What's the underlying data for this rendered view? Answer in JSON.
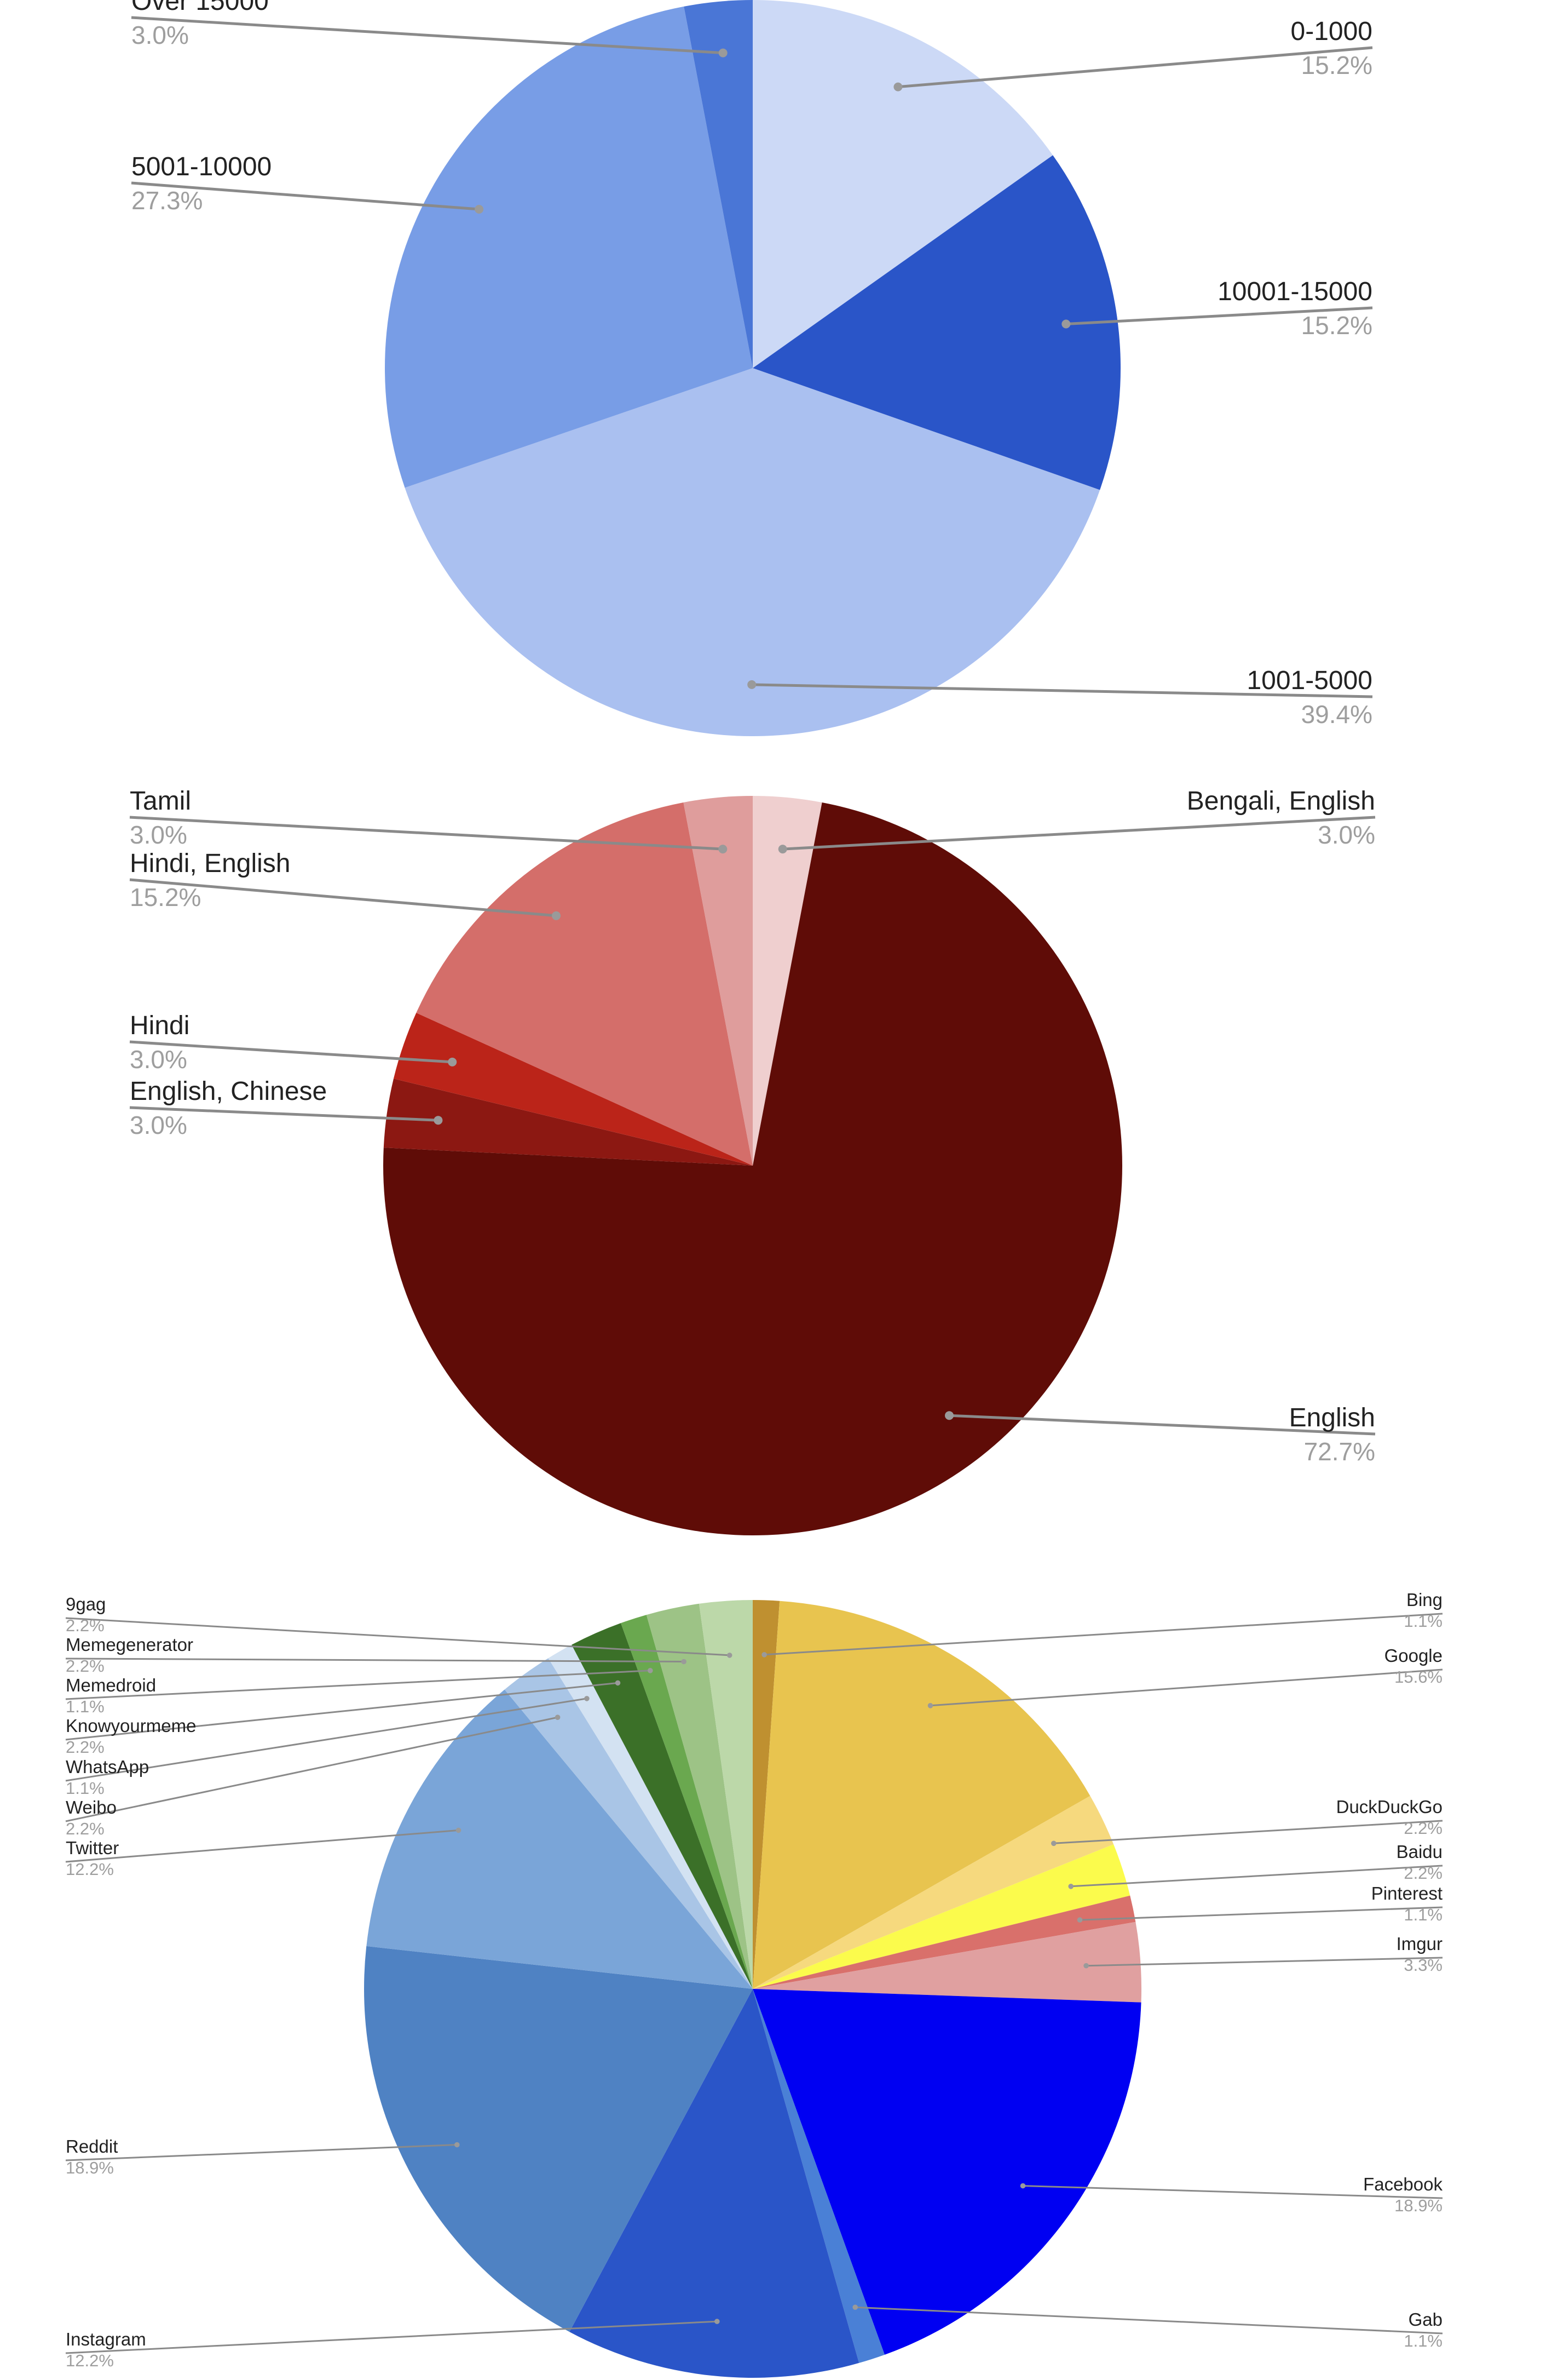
{
  "chart_data": [
    {
      "type": "pie",
      "start": "top",
      "direction": "clockwise",
      "slices": [
        {
          "label": "0-1000",
          "value": 15.2,
          "pct_label": "15.2%",
          "color": "#ccd9f6",
          "label_side": "right"
        },
        {
          "label": "10001-15000",
          "value": 15.2,
          "pct_label": "15.2%",
          "color": "#2a55c8",
          "label_side": "right"
        },
        {
          "label": "1001-5000",
          "value": 39.4,
          "pct_label": "39.4%",
          "color": "#aac0f0",
          "label_side": "right"
        },
        {
          "label": "5001-10000",
          "value": 27.3,
          "pct_label": "27.3%",
          "color": "#789de6",
          "label_side": "left"
        },
        {
          "label": "Over 15000",
          "value": 3.0,
          "pct_label": "3.0%",
          "color": "#4a76d6",
          "label_side": "left"
        }
      ]
    },
    {
      "type": "pie",
      "start": "top",
      "direction": "clockwise",
      "slices": [
        {
          "label": "Bengali, English",
          "value": 3.0,
          "pct_label": "3.0%",
          "color": "#efcfcf",
          "label_side": "right"
        },
        {
          "label": "English",
          "value": 72.7,
          "pct_label": "72.7%",
          "color": "#5f0c07",
          "label_side": "right"
        },
        {
          "label": "English, Chinese",
          "value": 3.0,
          "pct_label": "3.0%",
          "color": "#8c1812",
          "label_side": "left"
        },
        {
          "label": "Hindi",
          "value": 3.0,
          "pct_label": "3.0%",
          "color": "#bb2419",
          "label_side": "left"
        },
        {
          "label": "Hindi, English",
          "value": 15.2,
          "pct_label": "15.2%",
          "color": "#d46e6a",
          "label_side": "left"
        },
        {
          "label": "Tamil",
          "value": 3.0,
          "pct_label": "3.0%",
          "color": "#df9d9c",
          "label_side": "left"
        }
      ]
    },
    {
      "type": "pie",
      "start": "top",
      "direction": "clockwise",
      "slices": [
        {
          "label": "Bing",
          "value": 1.1,
          "pct_label": "1.1%",
          "color": "#bf9030",
          "label_side": "right"
        },
        {
          "label": "Google",
          "value": 15.6,
          "pct_label": "15.6%",
          "color": "#e8c44f",
          "label_side": "right"
        },
        {
          "label": "DuckDuckGo",
          "value": 2.2,
          "pct_label": "2.2%",
          "color": "#f6d97e",
          "label_side": "right"
        },
        {
          "label": "Baidu",
          "value": 2.2,
          "pct_label": "2.2%",
          "color": "#fbfb4c",
          "label_side": "right"
        },
        {
          "label": "Pinterest",
          "value": 1.1,
          "pct_label": "1.1%",
          "color": "#d9706b",
          "label_side": "right"
        },
        {
          "label": "Imgur",
          "value": 3.3,
          "pct_label": "3.3%",
          "color": "#e0a0a0",
          "label_side": "right"
        },
        {
          "label": "Facebook",
          "value": 18.9,
          "pct_label": "18.9%",
          "color": "#0000f2",
          "label_side": "right"
        },
        {
          "label": "Gab",
          "value": 1.1,
          "pct_label": "1.1%",
          "color": "#4a80d6",
          "label_side": "right"
        },
        {
          "label": "Instagram",
          "value": 12.2,
          "pct_label": "12.2%",
          "color": "#2a55c8",
          "label_side": "left"
        },
        {
          "label": "Reddit",
          "value": 18.9,
          "pct_label": "18.9%",
          "color": "#4f82c3",
          "label_side": "left"
        },
        {
          "label": "Twitter",
          "value": 12.2,
          "pct_label": "12.2%",
          "color": "#7aa5d8",
          "label_side": "left"
        },
        {
          "label": "Weibo",
          "value": 2.2,
          "pct_label": "2.2%",
          "color": "#a9c5e6",
          "label_side": "left"
        },
        {
          "label": "WhatsApp",
          "value": 1.1,
          "pct_label": "1.1%",
          "color": "#d3e2f2",
          "label_side": "left"
        },
        {
          "label": "Knowyourmeme",
          "value": 2.2,
          "pct_label": "2.2%",
          "color": "#3b7028",
          "label_side": "left"
        },
        {
          "label": "Memedroid",
          "value": 1.1,
          "pct_label": "1.1%",
          "color": "#6aa84f",
          "label_side": "left"
        },
        {
          "label": "Memegenerator",
          "value": 2.2,
          "pct_label": "2.2%",
          "color": "#9dc386",
          "label_side": "left"
        },
        {
          "label": "9gag",
          "value": 2.2,
          "pct_label": "2.2%",
          "color": "#bcd8a9",
          "label_side": "left"
        }
      ]
    }
  ]
}
